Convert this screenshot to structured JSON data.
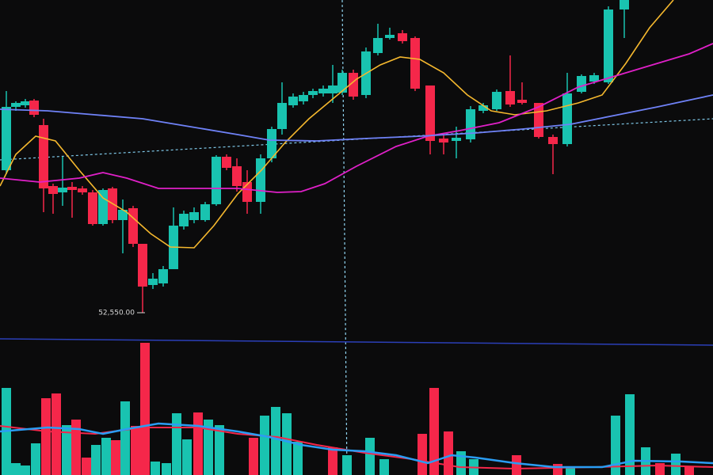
{
  "price_label": "52,550.00"
}
